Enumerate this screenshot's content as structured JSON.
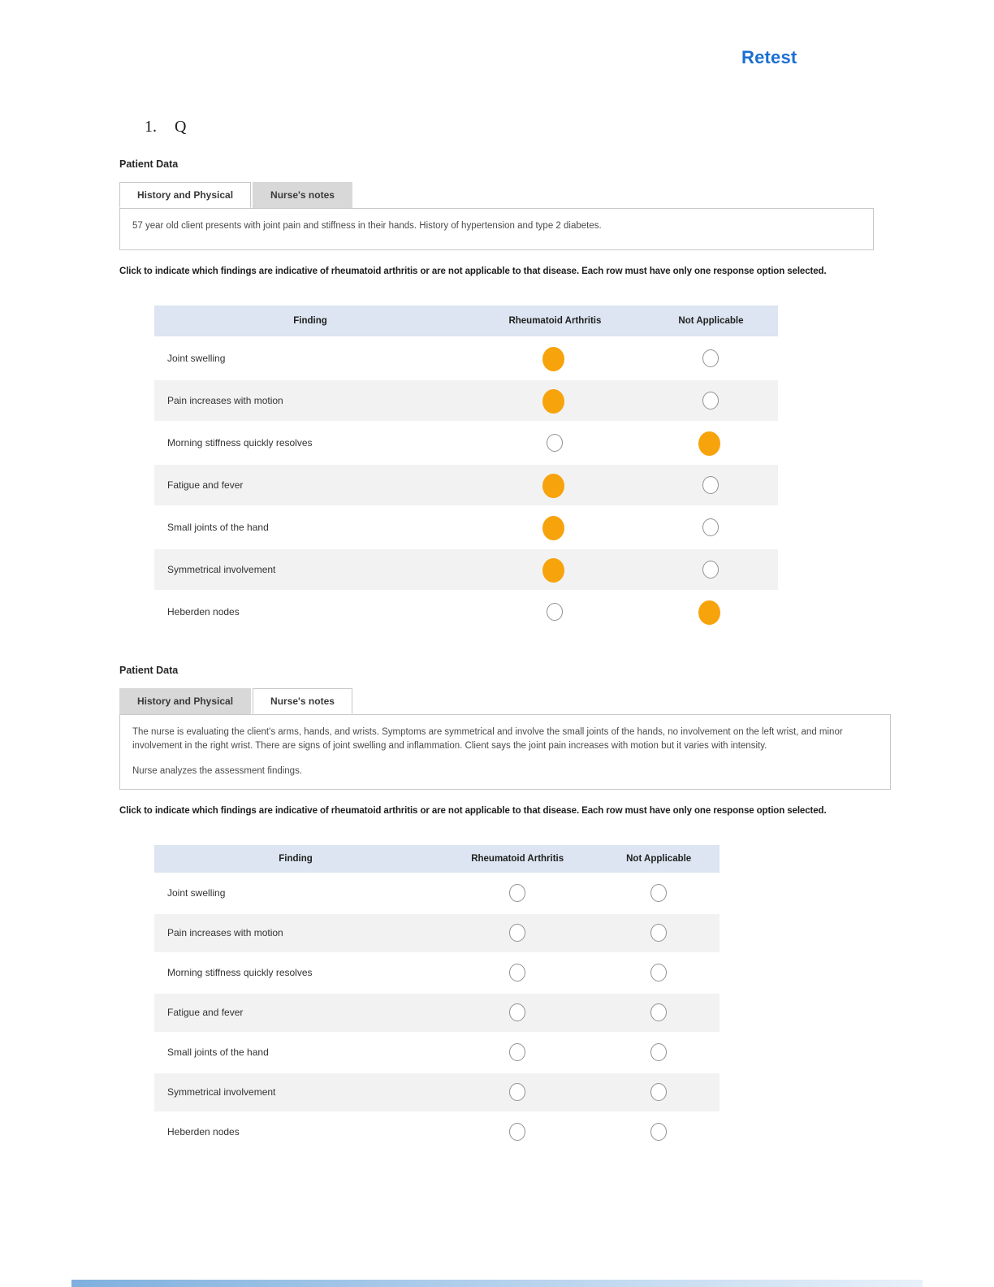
{
  "title": {
    "retest": "Retest"
  },
  "question": {
    "number": "1.",
    "label": "Q"
  },
  "instruction": {
    "text": "Click to indicate which findings are indicative of rheumatoid arthritis or are not applicable to that disease. Each row must have only one response option selected."
  },
  "colors": {
    "accent_blue": "#1b6fd2",
    "selected_orange": "#f7a30c",
    "table_header_bg": "#dce5f1",
    "alt_row_bg": "#f2f2f2",
    "inactive_tab_bg": "#d8d8d8"
  },
  "section1": {
    "heading": "Patient Data",
    "tabs": [
      {
        "label": "History and Physical",
        "active": true
      },
      {
        "label": "Nurse's notes",
        "active": false
      }
    ],
    "note": "57 year old client presents with joint pain and stiffness in their hands. History of hypertension and type 2 diabetes.",
    "table": {
      "headers": [
        "Finding",
        "Rheumatoid Arthritis",
        "Not Applicable"
      ],
      "rows": [
        {
          "finding": "Joint swelling",
          "selected": "ra"
        },
        {
          "finding": "Pain increases with motion",
          "selected": "ra"
        },
        {
          "finding": "Morning stiffness quickly resolves",
          "selected": "na"
        },
        {
          "finding": "Fatigue and fever",
          "selected": "ra"
        },
        {
          "finding": "Small joints of the hand",
          "selected": "ra"
        },
        {
          "finding": "Symmetrical involvement",
          "selected": "ra"
        },
        {
          "finding": "Heberden nodes",
          "selected": "na"
        }
      ]
    }
  },
  "section2": {
    "heading": "Patient Data",
    "tabs": [
      {
        "label": "History and Physical",
        "active": false
      },
      {
        "label": "Nurse's notes",
        "active": true
      }
    ],
    "note_paragraphs": [
      "The nurse is evaluating the client's arms, hands, and wrists. Symptoms are symmetrical and involve the small joints of the hands, no involvement on the left wrist, and minor involvement in the right wrist. There are signs of joint swelling and inflammation. Client says the joint pain increases with motion but it varies with intensity.",
      "Nurse analyzes the assessment findings."
    ],
    "table": {
      "headers": [
        "Finding",
        "Rheumatoid Arthritis",
        "Not Applicable"
      ],
      "rows": [
        {
          "finding": "Joint swelling",
          "selected": "none"
        },
        {
          "finding": "Pain increases with motion",
          "selected": "none"
        },
        {
          "finding": "Morning stiffness quickly resolves",
          "selected": "none"
        },
        {
          "finding": "Fatigue and fever",
          "selected": "none"
        },
        {
          "finding": "Small joints of the hand",
          "selected": "none"
        },
        {
          "finding": "Symmetrical involvement",
          "selected": "none"
        },
        {
          "finding": "Heberden nodes",
          "selected": "none"
        }
      ]
    }
  }
}
